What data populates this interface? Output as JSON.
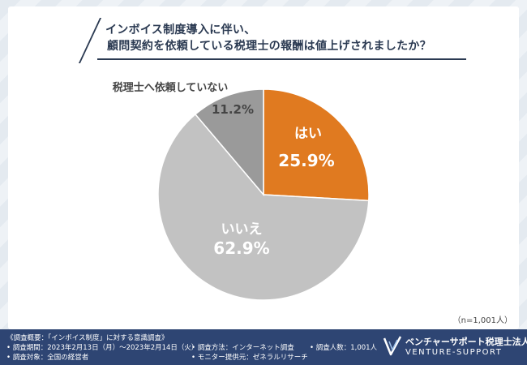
{
  "title": {
    "line1": "インボイス制度導入に伴い、",
    "line2": "顧問契約を依頼している税理士の報酬は値上げされましたか？"
  },
  "sample_size": "（n=1,001人）",
  "chart_data": {
    "type": "pie",
    "title": "インボイス制度導入に伴い、顧問契約を依頼している税理士の報酬は値上げされましたか？",
    "slices": [
      {
        "label": "はい",
        "value": 25.9,
        "value_label": "25.9%",
        "color": "#e07a20"
      },
      {
        "label": "いいえ",
        "value": 62.9,
        "value_label": "62.9%",
        "color": "#c2c2c2"
      },
      {
        "label": "税理士へ依頼していない",
        "value": 11.2,
        "value_label": "11.2%",
        "color": "#9a9a9a"
      }
    ],
    "start": "12 o'clock",
    "direction": "clockwise",
    "legend": "none"
  },
  "footer": {
    "col1": [
      "《調査概要：「インボイス制度」に対する意識調査》",
      "• 調査期間：2023年2月13日（月）～2023年2月14日（火）",
      "• 調査対象：全国の経営者"
    ],
    "col2": [
      "• 調査方法：インターネット調査",
      "• モニター提供元：ゼネラルリサーチ"
    ],
    "col3": [
      "• 調査人数：1,001人"
    ],
    "logo_jp": "ベンチャーサポート税理士法人",
    "logo_en": "VENTURE-SUPPORT"
  }
}
